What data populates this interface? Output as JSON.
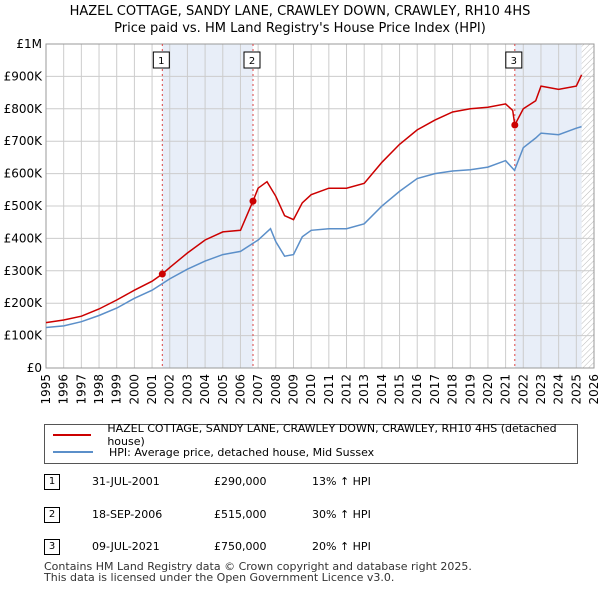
{
  "title_line1": "HAZEL COTTAGE, SANDY LANE, CRAWLEY DOWN, CRAWLEY, RH10 4HS",
  "title_line2": "Price paid vs. HM Land Registry's House Price Index (HPI)",
  "legend": {
    "red_label": "HAZEL COTTAGE, SANDY LANE, CRAWLEY DOWN, CRAWLEY, RH10 4HS (detached house)",
    "blue_label": "HPI: Average price, detached house, Mid Sussex"
  },
  "sales": [
    {
      "num": "1",
      "date": "31-JUL-2001",
      "price": "£290,000",
      "hpi": "13% ↑ HPI"
    },
    {
      "num": "2",
      "date": "18-SEP-2006",
      "price": "£515,000",
      "hpi": "30% ↑ HPI"
    },
    {
      "num": "3",
      "date": "09-JUL-2021",
      "price": "£750,000",
      "hpi": "20% ↑ HPI"
    }
  ],
  "footer_line1": "Contains HM Land Registry data © Crown copyright and database right 2025.",
  "footer_line2": "This data is licensed under the Open Government Licence v3.0.",
  "colors": {
    "red": "#cc0000",
    "blue": "#5b8fc9",
    "shade": "#e8eef8",
    "grid": "#cccccc",
    "dash": "#dd4444"
  },
  "chart_data": {
    "type": "line",
    "xlim": [
      1995,
      2026
    ],
    "ylim": [
      0,
      1000000
    ],
    "x_ticks": [
      1995,
      1996,
      1997,
      1998,
      1999,
      2000,
      2001,
      2002,
      2003,
      2004,
      2005,
      2006,
      2007,
      2008,
      2009,
      2010,
      2011,
      2012,
      2013,
      2014,
      2015,
      2016,
      2017,
      2018,
      2019,
      2020,
      2021,
      2022,
      2023,
      2024,
      2025,
      2026
    ],
    "x_tick_labels": [
      "1995",
      "1996",
      "1997",
      "1998",
      "1999",
      "2000",
      "2001",
      "2002",
      "2003",
      "2004",
      "2005",
      "2006",
      "2007",
      "2008",
      "2009",
      "2010",
      "2011",
      "2012",
      "2013",
      "2014",
      "2015",
      "2016",
      "2017",
      "2018",
      "2019",
      "2020",
      "2021",
      "2022",
      "2023",
      "2024",
      "2025",
      "2026"
    ],
    "y_ticks": [
      0,
      100000,
      200000,
      300000,
      400000,
      500000,
      600000,
      700000,
      800000,
      900000,
      1000000
    ],
    "y_tick_labels": [
      "£0",
      "£100K",
      "£200K",
      "£300K",
      "£400K",
      "£500K",
      "£600K",
      "£700K",
      "£800K",
      "£900K",
      "£1M"
    ],
    "shaded_periods": [
      [
        2001.58,
        2006.71
      ],
      [
        2021.52,
        2025.3
      ]
    ],
    "sale_markers": [
      {
        "label": "1",
        "x": 2001.58,
        "y": 290000
      },
      {
        "label": "2",
        "x": 2006.71,
        "y": 515000
      },
      {
        "label": "3",
        "x": 2021.52,
        "y": 750000
      }
    ],
    "series": [
      {
        "name": "HAZEL COTTAGE, SANDY LANE, CRAWLEY DOWN, CRAWLEY, RH10 4HS (detached house)",
        "color": "#cc0000",
        "x": [
          1995,
          1996,
          1997,
          1998,
          1999,
          2000,
          2001,
          2001.58,
          2002,
          2003,
          2004,
          2005,
          2006,
          2006.71,
          2007,
          2007.5,
          2008,
          2008.5,
          2009,
          2009.5,
          2010,
          2011,
          2012,
          2013,
          2014,
          2015,
          2016,
          2017,
          2018,
          2019,
          2020,
          2021,
          2021.4,
          2021.52,
          2022,
          2022.7,
          2023,
          2024,
          2025,
          2025.3
        ],
        "y": [
          140000,
          148000,
          160000,
          182000,
          210000,
          240000,
          268000,
          290000,
          310000,
          355000,
          395000,
          420000,
          425000,
          515000,
          555000,
          575000,
          530000,
          470000,
          458000,
          510000,
          535000,
          555000,
          555000,
          570000,
          635000,
          690000,
          735000,
          765000,
          790000,
          800000,
          805000,
          815000,
          795000,
          750000,
          800000,
          825000,
          870000,
          860000,
          870000,
          905000
        ]
      },
      {
        "name": "HPI: Average price, detached house, Mid Sussex",
        "color": "#5b8fc9",
        "x": [
          1995,
          1996,
          1997,
          1998,
          1999,
          2000,
          2001,
          2002,
          2003,
          2004,
          2005,
          2006,
          2007,
          2007.7,
          2008,
          2008.5,
          2009,
          2009.5,
          2010,
          2011,
          2012,
          2013,
          2014,
          2015,
          2016,
          2017,
          2018,
          2019,
          2020,
          2021,
          2021.5,
          2022,
          2022.7,
          2023,
          2024,
          2025,
          2025.3
        ],
        "y": [
          125000,
          130000,
          143000,
          162000,
          185000,
          215000,
          240000,
          275000,
          305000,
          330000,
          350000,
          360000,
          395000,
          430000,
          390000,
          345000,
          350000,
          405000,
          425000,
          430000,
          430000,
          445000,
          500000,
          545000,
          585000,
          600000,
          608000,
          612000,
          620000,
          640000,
          610000,
          680000,
          710000,
          725000,
          720000,
          740000,
          745000
        ]
      }
    ]
  }
}
